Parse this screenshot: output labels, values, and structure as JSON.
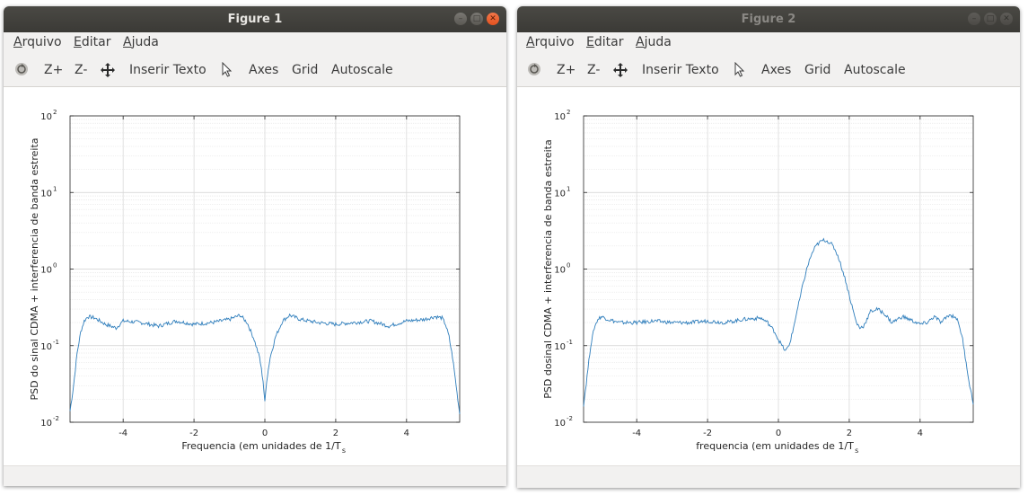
{
  "windows": [
    {
      "title": "Figure 1",
      "menu": [
        "Arquivo",
        "Editar",
        "Ajuda"
      ],
      "toolbar": {
        "zoom_in": "Z+",
        "zoom_out": "Z-",
        "insert_text": "Inserir Texto",
        "axes": "Axes",
        "grid": "Grid",
        "autoscale": "Autoscale"
      },
      "icons": [
        "rotate-icon",
        "pan-icon",
        "pointer-icon"
      ]
    },
    {
      "title": "Figure 2",
      "menu": [
        "Arquivo",
        "Editar",
        "Ajuda"
      ],
      "toolbar": {
        "zoom_in": "Z+",
        "zoom_out": "Z-",
        "insert_text": "Inserir Texto",
        "axes": "Axes",
        "grid": "Grid",
        "autoscale": "Autoscale"
      },
      "icons": [
        "rotate-icon",
        "pan-icon",
        "pointer-icon"
      ]
    }
  ],
  "chart_data": [
    {
      "type": "line",
      "scale_y": "log",
      "grid": true,
      "xlim": [
        -5.5,
        5.5
      ],
      "ylim": [
        0.01,
        100
      ],
      "xticks": [
        -4,
        -2,
        0,
        2,
        4
      ],
      "yticks": [
        "10^-2",
        "10^-1",
        "10^0",
        "10^1",
        "10^2"
      ],
      "xlabel": "Frequencia (em unidades de 1/T",
      "xlabel_sub": "s",
      "ylabel": "PSD do sinal CDMA + interferencia de banda estreita",
      "color": "#2f7ebc",
      "x": [
        -5.5,
        -5.4,
        -5.3,
        -5.2,
        -5.1,
        -5.0,
        -4.8,
        -4.5,
        -4.2,
        -4.0,
        -3.5,
        -3.0,
        -2.5,
        -2.0,
        -1.5,
        -1.0,
        -0.7,
        -0.5,
        -0.3,
        -0.15,
        -0.05,
        0.0,
        0.05,
        0.15,
        0.3,
        0.5,
        0.7,
        1.0,
        1.5,
        2.0,
        2.5,
        3.0,
        3.5,
        4.0,
        4.5,
        4.8,
        5.0,
        5.1,
        5.2,
        5.3,
        5.4,
        5.5
      ],
      "y": [
        0.014,
        0.03,
        0.08,
        0.15,
        0.21,
        0.24,
        0.23,
        0.19,
        0.17,
        0.21,
        0.2,
        0.18,
        0.21,
        0.19,
        0.2,
        0.22,
        0.25,
        0.2,
        0.12,
        0.07,
        0.035,
        0.018,
        0.035,
        0.07,
        0.13,
        0.21,
        0.25,
        0.22,
        0.2,
        0.19,
        0.2,
        0.21,
        0.18,
        0.21,
        0.22,
        0.24,
        0.23,
        0.19,
        0.13,
        0.07,
        0.03,
        0.013
      ]
    },
    {
      "type": "line",
      "scale_y": "log",
      "grid": true,
      "xlim": [
        -5.5,
        5.5
      ],
      "ylim": [
        0.01,
        100
      ],
      "xticks": [
        -4,
        -2,
        0,
        2,
        4
      ],
      "yticks": [
        "10^-2",
        "10^-1",
        "10^0",
        "10^1",
        "10^2"
      ],
      "xlabel": "frequencia (em unidades de 1/T",
      "xlabel_sub": "s",
      "ylabel": "PSD dosinal CDMA + interferencia de banda estreita",
      "color": "#2f7ebc",
      "x": [
        -5.5,
        -5.4,
        -5.3,
        -5.2,
        -5.1,
        -5.0,
        -4.8,
        -4.5,
        -4.0,
        -3.5,
        -3.0,
        -2.5,
        -2.0,
        -1.5,
        -1.0,
        -0.5,
        -0.3,
        -0.1,
        0.0,
        0.1,
        0.2,
        0.3,
        0.4,
        0.5,
        0.6,
        0.7,
        0.8,
        0.9,
        1.0,
        1.1,
        1.2,
        1.3,
        1.4,
        1.5,
        1.6,
        1.7,
        1.8,
        1.9,
        2.0,
        2.1,
        2.2,
        2.3,
        2.4,
        2.5,
        2.6,
        2.8,
        3.0,
        3.2,
        3.5,
        3.7,
        4.0,
        4.2,
        4.4,
        4.6,
        4.8,
        5.0,
        5.1,
        5.2,
        5.3,
        5.4,
        5.5
      ],
      "y": [
        0.017,
        0.04,
        0.1,
        0.17,
        0.22,
        0.24,
        0.22,
        0.2,
        0.2,
        0.21,
        0.2,
        0.2,
        0.21,
        0.2,
        0.22,
        0.23,
        0.2,
        0.15,
        0.12,
        0.1,
        0.085,
        0.1,
        0.15,
        0.25,
        0.4,
        0.65,
        1.0,
        1.4,
        1.8,
        2.1,
        2.3,
        2.4,
        2.3,
        2.1,
        1.8,
        1.4,
        1.0,
        0.7,
        0.45,
        0.3,
        0.2,
        0.17,
        0.18,
        0.22,
        0.28,
        0.3,
        0.26,
        0.2,
        0.24,
        0.22,
        0.19,
        0.2,
        0.24,
        0.2,
        0.25,
        0.24,
        0.19,
        0.12,
        0.06,
        0.03,
        0.018
      ]
    }
  ]
}
